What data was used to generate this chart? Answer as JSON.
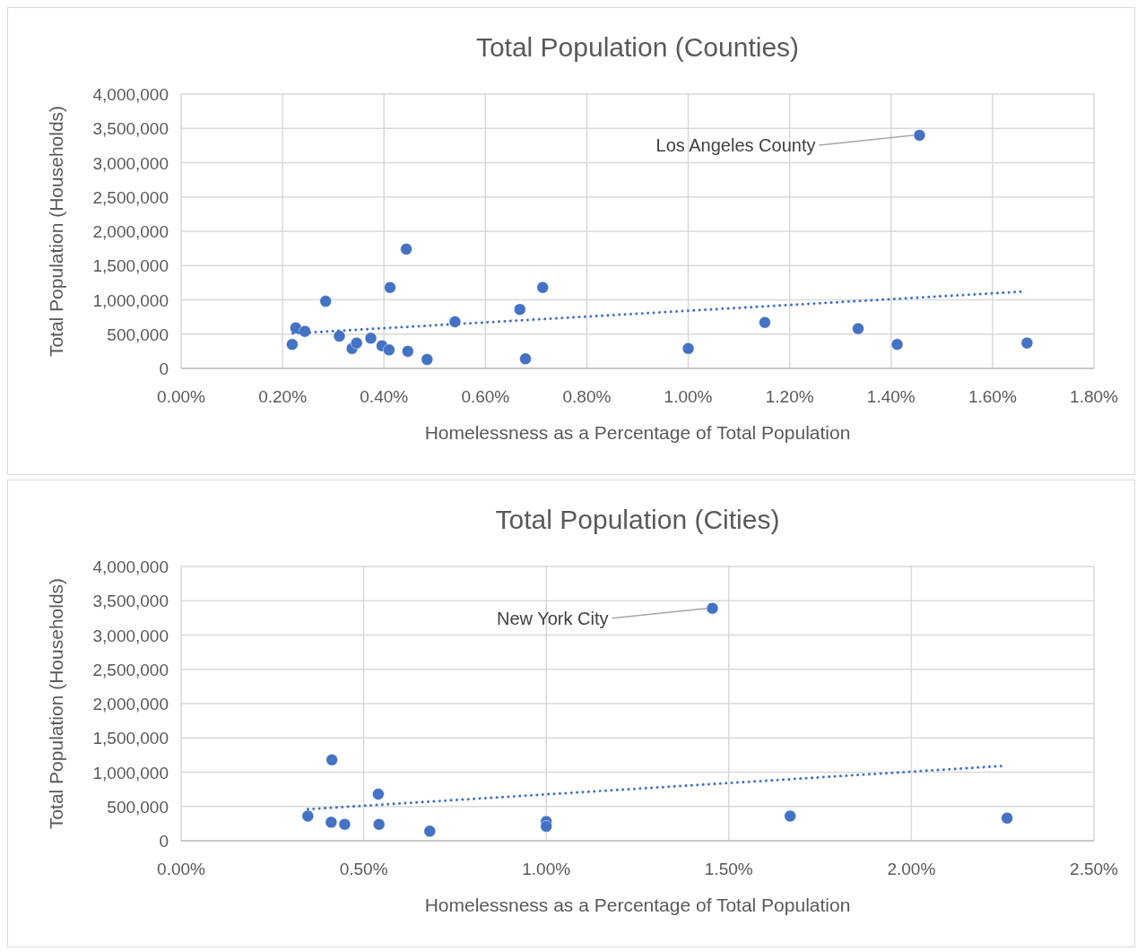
{
  "chart_data": [
    {
      "type": "scatter",
      "title": "Total Population (Counties)",
      "xlabel": "Homelessness as a Percentage of Total Population",
      "ylabel": "Total Population (Households)",
      "xlim": [
        0,
        1.8
      ],
      "ylim": [
        0,
        4000000
      ],
      "xticks": [
        {
          "value": 0,
          "label": "0.00%"
        },
        {
          "value": 0.2,
          "label": "0.20%"
        },
        {
          "value": 0.4,
          "label": "0.40%"
        },
        {
          "value": 0.6,
          "label": "0.60%"
        },
        {
          "value": 0.8,
          "label": "0.80%"
        },
        {
          "value": 1.0,
          "label": "1.00%"
        },
        {
          "value": 1.2,
          "label": "1.20%"
        },
        {
          "value": 1.4,
          "label": "1.40%"
        },
        {
          "value": 1.6,
          "label": "1.60%"
        },
        {
          "value": 1.8,
          "label": "1.80%"
        }
      ],
      "yticks": [
        0,
        {
          "value": 500000,
          "label": "500,000"
        },
        {
          "value": 1000000,
          "label": "1,000,000"
        },
        {
          "value": 1500000,
          "label": "1,500,000"
        },
        {
          "value": 2000000,
          "label": "2,000,000"
        },
        {
          "value": 2500000,
          "label": "2,500,000"
        },
        {
          "value": 3000000,
          "label": "3,000,000"
        },
        {
          "value": 3500000,
          "label": "3,500,000"
        },
        {
          "value": 4000000,
          "label": "4,000,000"
        }
      ],
      "grid": true,
      "marker": "circle",
      "series": [
        {
          "color": "#4472c4",
          "x": [
            0.444,
            0.412,
            0.285,
            0.713,
            0.668,
            0.226,
            0.244,
            0.219,
            0.312,
            0.54,
            0.337,
            0.346,
            0.374,
            0.396,
            0.41,
            0.447,
            0.485,
            0.679,
            1.0,
            1.151,
            1.335,
            1.412,
            1.668,
            1.456
          ],
          "values": [
            1740000,
            1180000,
            980000,
            1180000,
            860000,
            590000,
            540000,
            350000,
            470000,
            680000,
            290000,
            370000,
            440000,
            330000,
            270000,
            250000,
            130000,
            140000,
            290000,
            670000,
            580000,
            350000,
            370000,
            3400000
          ]
        },
        {
          "type": "line",
          "color": "#4472c4",
          "line_style": "dotted",
          "marker": "none",
          "x": [
            0.22,
            1.66
          ],
          "values": [
            510000,
            1120000
          ]
        }
      ],
      "annotations": [
        {
          "text": "Los Angeles County",
          "x": 1.456,
          "y": 3400000
        }
      ]
    },
    {
      "type": "scatter",
      "title": "Total Population (Cities)",
      "xlabel": "Homelessness as a Percentage of Total Population",
      "ylabel": "Total Population (Households)",
      "xlim": [
        0,
        2.5
      ],
      "ylim": [
        0,
        4000000
      ],
      "xticks": [
        {
          "value": 0,
          "label": "0.00%"
        },
        {
          "value": 0.5,
          "label": "0.50%"
        },
        {
          "value": 1.0,
          "label": "1.00%"
        },
        {
          "value": 1.5,
          "label": "1.50%"
        },
        {
          "value": 2.0,
          "label": "2.00%"
        },
        {
          "value": 2.5,
          "label": "2.50%"
        }
      ],
      "yticks": [
        0,
        {
          "value": 500000,
          "label": "500,000"
        },
        {
          "value": 1000000,
          "label": "1,000,000"
        },
        {
          "value": 1500000,
          "label": "1,500,000"
        },
        {
          "value": 2000000,
          "label": "2,000,000"
        },
        {
          "value": 2500000,
          "label": "2,500,000"
        },
        {
          "value": 3000000,
          "label": "3,000,000"
        },
        {
          "value": 3500000,
          "label": "3,500,000"
        },
        {
          "value": 4000000,
          "label": "4,000,000"
        }
      ],
      "grid": true,
      "marker": "circle",
      "series": [
        {
          "color": "#4472c4",
          "x": [
            0.413,
            0.54,
            0.347,
            0.411,
            0.448,
            0.542,
            0.681,
            1.0,
            1.0,
            1.455,
            1.668,
            2.262
          ],
          "values": [
            1180000,
            680000,
            360000,
            270000,
            240000,
            240000,
            140000,
            280000,
            210000,
            3390000,
            360000,
            330000
          ]
        },
        {
          "type": "line",
          "color": "#4472c4",
          "line_style": "dotted",
          "marker": "none",
          "x": [
            0.347,
            2.248
          ],
          "values": [
            460000,
            1090000
          ]
        }
      ],
      "annotations": [
        {
          "text": "New York City",
          "x": 1.455,
          "y": 3390000
        }
      ]
    }
  ]
}
